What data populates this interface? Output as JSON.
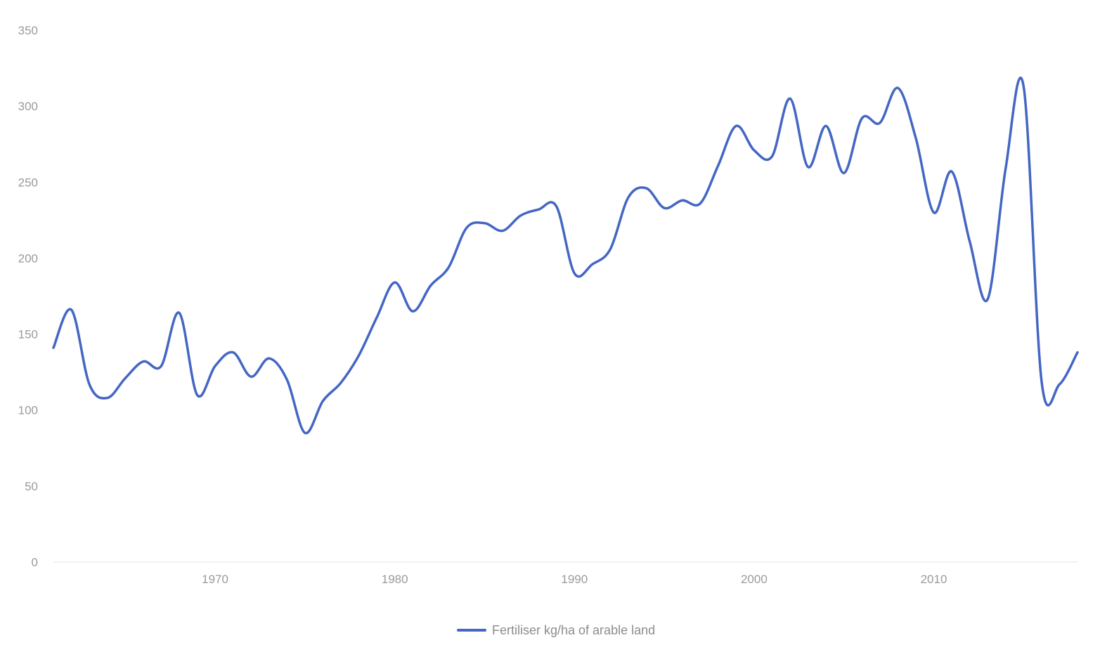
{
  "chart_data": {
    "type": "line",
    "title": "",
    "xlabel": "",
    "ylabel": "",
    "xlim": [
      1961,
      2018
    ],
    "ylim": [
      0,
      350
    ],
    "x_ticks": [
      1970,
      1980,
      1990,
      2000,
      2010
    ],
    "y_ticks": [
      0,
      50,
      100,
      150,
      200,
      250,
      300,
      350
    ],
    "grid": false,
    "legend_position": "bottom",
    "series": [
      {
        "name": "Fertiliser kg/ha of arable land",
        "color": "#4466c4",
        "x": [
          1961,
          1962,
          1963,
          1964,
          1965,
          1966,
          1967,
          1968,
          1969,
          1970,
          1971,
          1972,
          1973,
          1974,
          1975,
          1976,
          1977,
          1978,
          1979,
          1980,
          1981,
          1982,
          1983,
          1984,
          1985,
          1986,
          1987,
          1988,
          1989,
          1990,
          1991,
          1992,
          1993,
          1994,
          1995,
          1996,
          1997,
          1998,
          1999,
          2000,
          2001,
          2002,
          2003,
          2004,
          2005,
          2006,
          2007,
          2008,
          2009,
          2010,
          2011,
          2012,
          2013,
          2014,
          2015,
          2016,
          2017,
          2018
        ],
        "values": [
          141,
          166,
          117,
          108,
          121,
          132,
          129,
          164,
          110,
          129,
          138,
          122,
          134,
          120,
          85,
          106,
          118,
          136,
          161,
          184,
          165,
          182,
          194,
          220,
          223,
          218,
          228,
          232,
          234,
          190,
          196,
          206,
          240,
          246,
          233,
          238,
          236,
          261,
          287,
          271,
          267,
          305,
          260,
          287,
          256,
          292,
          289,
          312,
          279,
          230,
          257,
          211,
          173,
          259,
          313,
          119,
          117,
          138
        ]
      }
    ]
  }
}
